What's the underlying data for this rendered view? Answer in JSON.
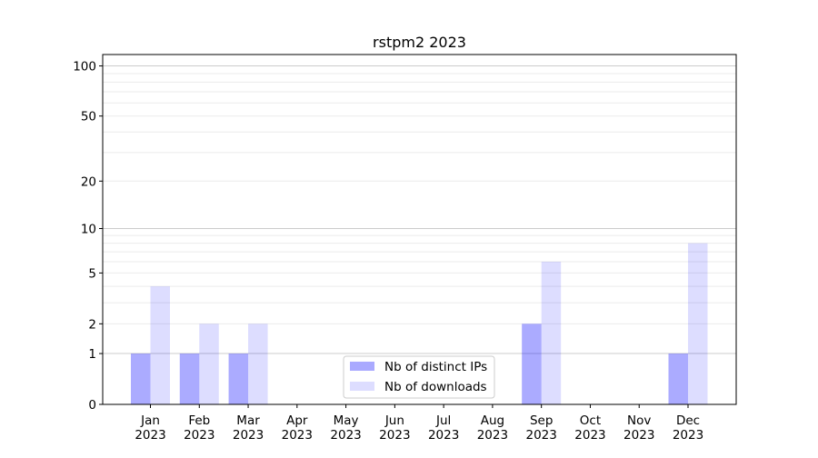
{
  "chart_data": {
    "type": "bar",
    "title": "rstpm2 2023",
    "xlabel": "",
    "ylabel": "",
    "yscale": "log(1+y)",
    "ylim": [
      0,
      117
    ],
    "grid": true,
    "legend_position": "bottom-center",
    "categories": [
      "Jan\n2023",
      "Feb\n2023",
      "Mar\n2023",
      "Apr\n2023",
      "May\n2023",
      "Jun\n2023",
      "Jul\n2023",
      "Aug\n2023",
      "Sep\n2023",
      "Oct\n2023",
      "Nov\n2023",
      "Dec\n2023"
    ],
    "yticks": [
      0,
      1,
      2,
      5,
      10,
      20,
      50,
      100
    ],
    "series": [
      {
        "name": "Nb of distinct IPs",
        "color": "#aaaaff",
        "values": [
          1,
          1,
          1,
          0,
          0,
          0,
          0,
          0,
          2,
          0,
          0,
          1
        ]
      },
      {
        "name": "Nb of downloads",
        "color": "#ddddff",
        "values": [
          4,
          2,
          2,
          0,
          0,
          0,
          0,
          0,
          6,
          0,
          0,
          8
        ]
      }
    ]
  }
}
